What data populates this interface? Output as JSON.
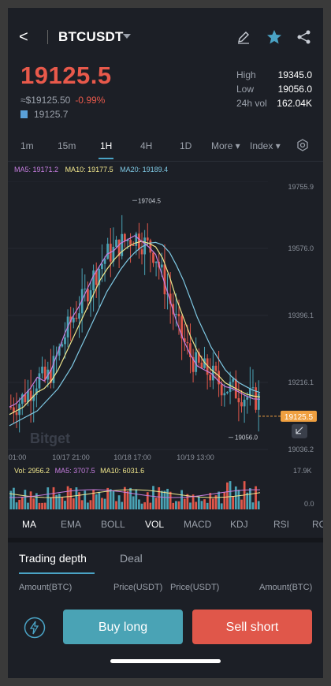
{
  "header": {
    "back": "<",
    "symbol": "BTCUSDT",
    "edit_icon": "✎",
    "star_icon": "★",
    "share_icon": "share"
  },
  "price": {
    "last": "19125.5",
    "approx": "≈$19125.50",
    "change": "-0.99%",
    "mark": "19125.7"
  },
  "stats": [
    {
      "label": "High",
      "value": "19345.0"
    },
    {
      "label": "Low",
      "value": "19056.0"
    },
    {
      "label": "24h vol",
      "value": "162.04K"
    }
  ],
  "timeframes": [
    "1m",
    "15m",
    "1H",
    "4H",
    "1D",
    "More ▾",
    "Index ▾"
  ],
  "active_timeframe": "1H",
  "ma_legend": {
    "ma5": "MA5: 19171.2",
    "ma10": "MA10: 19177.5",
    "ma20": "MA20: 19189.4"
  },
  "colors": {
    "up": "#4aa3b5",
    "down": "#e0574a",
    "ma5": "#c67ee0",
    "ma10": "#f0e68c",
    "ma20": "#7ec8e3",
    "accent": "#4aa3c5"
  },
  "chart_data": {
    "type": "candlestick",
    "y_ticks": [
      "19755.9",
      "19576.0",
      "19396.1",
      "19216.1",
      "19036.2"
    ],
    "ylim": [
      19036.2,
      19755.9
    ],
    "x_ticks": [
      "01:00",
      "10/17 21:00",
      "10/18 17:00",
      "10/19 13:00"
    ],
    "annotations": {
      "high": "19704.5",
      "low": "19056.0"
    },
    "last_price_tag": "19125.5",
    "watermark": "Bitget",
    "ma5": [
      19150,
      19160,
      19180,
      19200,
      19230,
      19220,
      19250,
      19300,
      19350,
      19390,
      19420,
      19460,
      19500,
      19530,
      19560,
      19570,
      19590,
      19600,
      19610,
      19595,
      19580,
      19560,
      19500,
      19440,
      19380,
      19330,
      19290,
      19260,
      19250,
      19240,
      19220,
      19205,
      19200,
      19190,
      19180,
      19172,
      19171
    ],
    "ma10": [
      19130,
      19140,
      19150,
      19170,
      19190,
      19200,
      19220,
      19250,
      19290,
      19330,
      19370,
      19410,
      19450,
      19490,
      19520,
      19545,
      19565,
      19580,
      19590,
      19595,
      19590,
      19580,
      19550,
      19500,
      19440,
      19390,
      19340,
      19300,
      19270,
      19250,
      19235,
      19215,
      19205,
      19195,
      19185,
      19180,
      19177
    ],
    "ma20": [
      19100,
      19110,
      19120,
      19130,
      19140,
      19160,
      19180,
      19200,
      19230,
      19260,
      19300,
      19340,
      19380,
      19420,
      19460,
      19490,
      19520,
      19545,
      19565,
      19580,
      19590,
      19592,
      19585,
      19565,
      19530,
      19490,
      19440,
      19390,
      19350,
      19310,
      19280,
      19250,
      19230,
      19215,
      19205,
      19195,
      19189
    ],
    "volume_axis": [
      "17.9K",
      "0.0"
    ],
    "vol_legend": {
      "vol": "Vol: 2956.2",
      "ma5": "MA5: 3707.5",
      "ma10": "MA10: 6031.6"
    }
  },
  "indicators": [
    "MA",
    "EMA",
    "BOLL",
    "VOL",
    "MACD",
    "KDJ",
    "RSI",
    "RO"
  ],
  "active_indicators": [
    "MA",
    "VOL"
  ],
  "bottom_tabs": [
    "Trading depth",
    "Deal"
  ],
  "columns": [
    "Amount(BTC)",
    "Price(USDT)",
    "Price(USDT)",
    "Amount(BTC)"
  ],
  "buttons": {
    "buy": "Buy long",
    "sell": "Sell short"
  }
}
